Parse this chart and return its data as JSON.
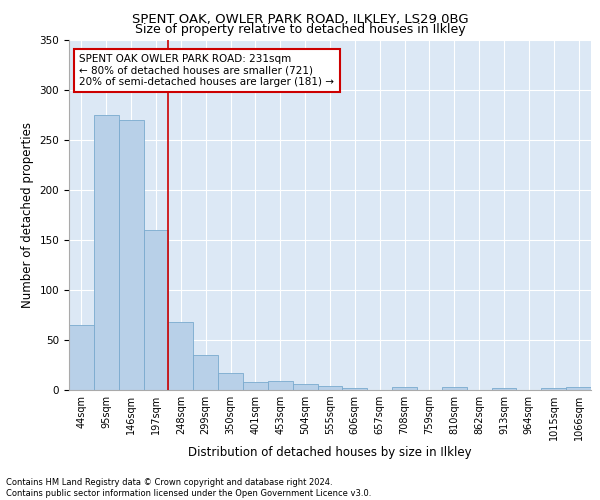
{
  "title1": "SPENT OAK, OWLER PARK ROAD, ILKLEY, LS29 0BG",
  "title2": "Size of property relative to detached houses in Ilkley",
  "xlabel": "Distribution of detached houses by size in Ilkley",
  "ylabel": "Number of detached properties",
  "categories": [
    "44sqm",
    "95sqm",
    "146sqm",
    "197sqm",
    "248sqm",
    "299sqm",
    "350sqm",
    "401sqm",
    "453sqm",
    "504sqm",
    "555sqm",
    "606sqm",
    "657sqm",
    "708sqm",
    "759sqm",
    "810sqm",
    "862sqm",
    "913sqm",
    "964sqm",
    "1015sqm",
    "1066sqm"
  ],
  "values": [
    65,
    275,
    270,
    160,
    68,
    35,
    17,
    8,
    9,
    6,
    4,
    2,
    0,
    3,
    0,
    3,
    0,
    2,
    0,
    2,
    3
  ],
  "bar_color": "#b8d0e8",
  "bar_edge_color": "#7aaace",
  "red_line_index": 4,
  "annotation_text": "SPENT OAK OWLER PARK ROAD: 231sqm\n← 80% of detached houses are smaller (721)\n20% of semi-detached houses are larger (181) →",
  "annotation_box_color": "#ffffff",
  "annotation_border_color": "#cc0000",
  "red_line_color": "#cc0000",
  "background_color": "#dce8f5",
  "ylim": [
    0,
    350
  ],
  "yticks": [
    0,
    50,
    100,
    150,
    200,
    250,
    300,
    350
  ],
  "footer": "Contains HM Land Registry data © Crown copyright and database right 2024.\nContains public sector information licensed under the Open Government Licence v3.0.",
  "title_fontsize": 9.5,
  "subtitle_fontsize": 9,
  "axis_label_fontsize": 8.5,
  "tick_fontsize": 7.5,
  "footer_fontsize": 6
}
